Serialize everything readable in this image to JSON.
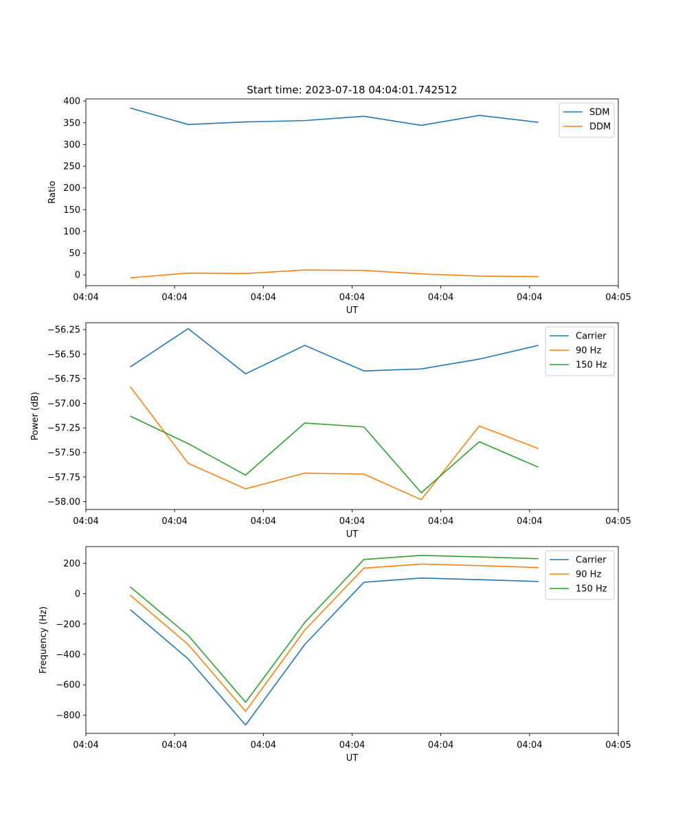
{
  "chart_data": [
    {
      "type": "line",
      "title": "Start time: 2023-07-18 04:04:01.742512",
      "xlabel": "UT",
      "ylabel": "Ratio",
      "xlim": [
        0,
        9
      ],
      "xticks": [
        0,
        1.5,
        3,
        4.5,
        6,
        7.5,
        9
      ],
      "xtick_labels": [
        "04:04",
        "04:04",
        "04:04",
        "04:04",
        "04:04",
        "04:04",
        "04:05"
      ],
      "ylim": [
        -25,
        405
      ],
      "yticks": [
        0,
        50,
        100,
        150,
        200,
        250,
        300,
        350,
        400
      ],
      "ytick_labels": [
        "0",
        "50",
        "100",
        "150",
        "200",
        "250",
        "300",
        "350",
        "400"
      ],
      "x": [
        0.75,
        1.73,
        2.7,
        3.7,
        4.7,
        5.67,
        6.65,
        7.65
      ],
      "series": [
        {
          "name": "SDM",
          "color": "#1f77b4",
          "values": [
            384,
            346,
            352,
            355,
            365,
            344,
            367,
            351
          ]
        },
        {
          "name": "DDM",
          "color": "#ff7f0e",
          "values": [
            -7,
            4,
            3,
            11,
            10,
            2,
            -3,
            -4
          ]
        }
      ],
      "legend": "top-right",
      "grid": false
    },
    {
      "type": "line",
      "title": "",
      "xlabel": "UT",
      "ylabel": "Power (dB)",
      "xlim": [
        0,
        9
      ],
      "xticks": [
        0,
        1.5,
        3,
        4.5,
        6,
        7.5,
        9
      ],
      "xtick_labels": [
        "04:04",
        "04:04",
        "04:04",
        "04:04",
        "04:04",
        "04:04",
        "04:05"
      ],
      "ylim": [
        -58.08,
        -56.18
      ],
      "yticks": [
        -58.0,
        -57.75,
        -57.5,
        -57.25,
        -57.0,
        -56.75,
        -56.5,
        -56.25
      ],
      "ytick_labels": [
        "−58.00",
        "−57.75",
        "−57.50",
        "−57.25",
        "−57.00",
        "−56.75",
        "−56.50",
        "−56.25"
      ],
      "x": [
        0.75,
        1.73,
        2.7,
        3.7,
        4.7,
        5.67,
        6.65,
        7.65
      ],
      "series": [
        {
          "name": "Carrier",
          "color": "#1f77b4",
          "values": [
            -56.63,
            -56.24,
            -56.7,
            -56.41,
            -56.67,
            -56.65,
            -56.55,
            -56.41
          ]
        },
        {
          "name": "90 Hz",
          "color": "#ff7f0e",
          "values": [
            -56.83,
            -57.61,
            -57.87,
            -57.71,
            -57.72,
            -57.98,
            -57.23,
            -57.46
          ]
        },
        {
          "name": "150 Hz",
          "color": "#2ca02c",
          "values": [
            -57.13,
            -57.41,
            -57.73,
            -57.2,
            -57.24,
            -57.91,
            -57.39,
            -57.65
          ]
        }
      ],
      "legend": "top-right",
      "grid": false
    },
    {
      "type": "line",
      "title": "",
      "xlabel": "UT",
      "ylabel": "Frequency (Hz)",
      "xlim": [
        0,
        9
      ],
      "xticks": [
        0,
        1.5,
        3,
        4.5,
        6,
        7.5,
        9
      ],
      "xtick_labels": [
        "04:04",
        "04:04",
        "04:04",
        "04:04",
        "04:04",
        "04:04",
        "04:05"
      ],
      "ylim": [
        -920,
        310
      ],
      "yticks": [
        -800,
        -600,
        -400,
        -200,
        0,
        200
      ],
      "ytick_labels": [
        "−800",
        "−600",
        "−400",
        "−200",
        "0",
        "200"
      ],
      "x": [
        0.75,
        1.73,
        2.7,
        3.7,
        4.7,
        5.67,
        6.65,
        7.65
      ],
      "series": [
        {
          "name": "Carrier",
          "color": "#1f77b4",
          "values": [
            -105,
            -430,
            -865,
            -335,
            75,
            103,
            92,
            80
          ]
        },
        {
          "name": "90 Hz",
          "color": "#ff7f0e",
          "values": [
            -10,
            -335,
            -775,
            -240,
            168,
            195,
            185,
            172
          ]
        },
        {
          "name": "150 Hz",
          "color": "#2ca02c",
          "values": [
            45,
            -275,
            -715,
            -190,
            225,
            252,
            242,
            230
          ]
        }
      ],
      "legend": "top-right",
      "grid": false
    }
  ]
}
